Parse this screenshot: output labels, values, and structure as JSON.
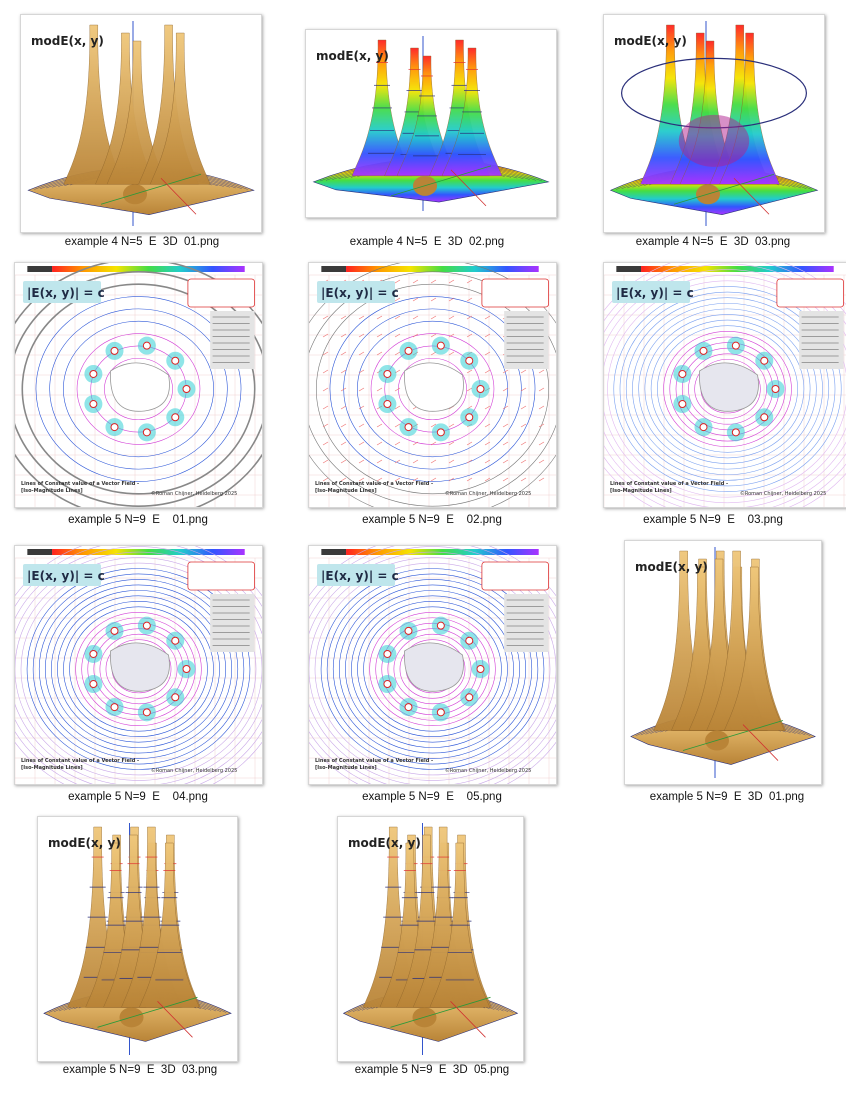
{
  "files": [
    {
      "name": "example 4 N=5  E  3D  01.png",
      "kind": "surface-gold",
      "overlay": "modE(x, y)"
    },
    {
      "name": "example 4 N=5  E  3D  02.png",
      "kind": "surface-rainbow",
      "overlay": "modE(x, y)"
    },
    {
      "name": "example 4 N=5  E  3D  03.png",
      "kind": "surface-dome",
      "overlay": "modE(x, y)"
    },
    {
      "name": "example 5 N=9  E    01.png",
      "kind": "contour-gray",
      "overlay": "|E(x, y)| = c",
      "footer1": "Lines of Constant value of a Vector Field -",
      "footer2": "[Iso-Magnitude Lines]",
      "credit": "©Roman Chijner,  Heidelberg 2025"
    },
    {
      "name": "example 5 N=9  E    02.png",
      "kind": "contour-vectors",
      "overlay": "|E(x, y)| = c",
      "footer1": "Lines of Constant value of a Vector Field -",
      "footer2": "[Iso-Magnitude Lines]",
      "credit": "©Roman Chijner,  Heidelberg 2025"
    },
    {
      "name": "example 5 N=9  E    03.png",
      "kind": "contour-light",
      "overlay": "|E(x, y)| = c",
      "footer1": "Lines of Constant value of a Vector Field -",
      "footer2": "[Iso-Magnitude Lines]",
      "credit": "©Roman Chijner,  Heidelberg 2025"
    },
    {
      "name": "example 5 N=9  E    04.png",
      "kind": "contour-blue",
      "overlay": "|E(x, y)| = c",
      "footer1": "Lines of Constant value of a Vector Field -",
      "footer2": "[Iso-Magnitude Lines]",
      "credit": "©Roman Chijner,  Heidelberg 2025"
    },
    {
      "name": "example 5 N=9  E    05.png",
      "kind": "contour-blue2",
      "overlay": "|E(x, y)| = c",
      "footer1": "Lines of Constant value of a Vector Field -",
      "footer2": "[Iso-Magnitude Lines]",
      "credit": "©Roman Chijner,  Heidelberg 2025"
    },
    {
      "name": "example 5 N=9  E  3D  01.png",
      "kind": "surface-gold9",
      "overlay": "modE(x, y)"
    },
    {
      "name": "example 5 N=9  E  3D  03.png",
      "kind": "surface-grid9",
      "overlay": "modE(x, y)"
    },
    {
      "name": "example 5 N=9  E  3D  05.png",
      "kind": "surface-grid9b",
      "overlay": "modE(x, y)"
    }
  ],
  "palette": {
    "gold": "#e8b866",
    "gold_dark": "#b98437",
    "grid_line": "#2a2f7a",
    "formula_bg": "#bfe6ec",
    "contour_magenta": "#d23fd6",
    "contour_blue": "#2d57d8",
    "contour_cyan": "#33d0d6"
  }
}
